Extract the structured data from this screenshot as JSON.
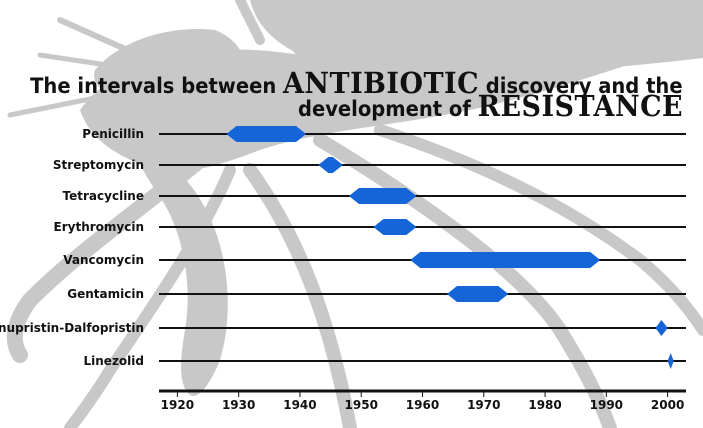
{
  "title": {
    "line1_prefix": "The intervals between ",
    "line1_emphasis": "ANTIBIOTIC",
    "line1_suffix": " discovery and the",
    "line2_prefix": "development of ",
    "line2_emphasis": "RESISTANCE"
  },
  "colors": {
    "bar": "#1565d8",
    "line": "#111111",
    "mosquito": "#c8c8c8"
  },
  "chart_data": {
    "type": "bar",
    "orientation": "horizontal-range",
    "xlim": [
      1917,
      2003
    ],
    "x_ticks": [
      1920,
      1930,
      1940,
      1950,
      1960,
      1970,
      1980,
      1990,
      2000
    ],
    "series": [
      {
        "category": "Penicillin",
        "discovered": 1928,
        "resistance": 1941
      },
      {
        "category": "Streptomycin",
        "discovered": 1943,
        "resistance": 1947
      },
      {
        "category": "Tetracycline",
        "discovered": 1948,
        "resistance": 1959
      },
      {
        "category": "Erythromycin",
        "discovered": 1952,
        "resistance": 1959
      },
      {
        "category": "Vancomycin",
        "discovered": 1958,
        "resistance": 1989
      },
      {
        "category": "Gentamicin",
        "discovered": 1964,
        "resistance": 1974
      },
      {
        "category": "Quinupristin-Dalfopristin",
        "discovered": 1998,
        "resistance": 2000
      },
      {
        "category": "Linezolid",
        "discovered": 2000,
        "resistance": 2001
      }
    ]
  }
}
